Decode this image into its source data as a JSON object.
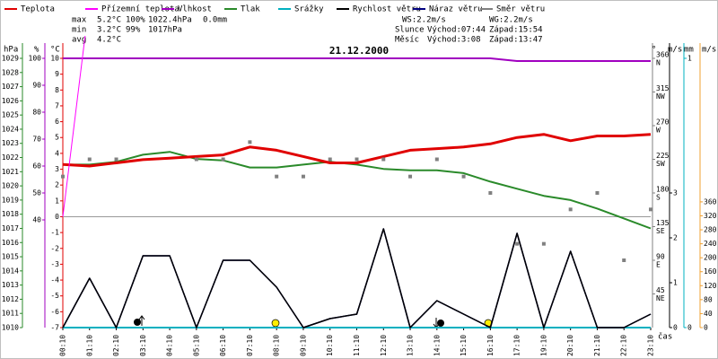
{
  "header": {
    "stats": [
      {
        "label": "max",
        "items": [
          {
            "text": "5.2°C",
            "color": "#e00000"
          },
          {
            "text": "100%",
            "color": "#a000c0"
          },
          {
            "text": "1022.4hPa",
            "color": "#2a8a2a"
          },
          {
            "text": "0.0mm",
            "color": "#00b0c0"
          }
        ]
      },
      {
        "label": "min",
        "items": [
          {
            "text": "3.2°C",
            "color": "#e00000"
          },
          {
            "text": "99%",
            "color": "#a000c0"
          },
          {
            "text": "1017hPa",
            "color": "#2a8a2a"
          }
        ]
      },
      {
        "label": "avg",
        "items": [
          {
            "text": "4.2°C",
            "color": "#e00000"
          }
        ]
      }
    ],
    "wind": [
      "WS:2.2m/s",
      "WG:2.2m/s"
    ],
    "sun": {
      "label": "Slunce",
      "rise": "Východ:07:44",
      "set": "Západ:15:54"
    },
    "moon": {
      "label": "Měsíc",
      "rise": "Východ:3:08",
      "set": "Západ:13:47"
    }
  },
  "chart_data": {
    "type": "line",
    "title": "21.12.2000",
    "x_label": "čas",
    "categories": [
      "00:10",
      "01:10",
      "02:10",
      "03:10",
      "04:10",
      "05:10",
      "06:10",
      "07:10",
      "08:10",
      "09:10",
      "10:10",
      "11:10",
      "12:10",
      "13:10",
      "14:10",
      "15:10",
      "16:10",
      "17:10",
      "19:10",
      "20:10",
      "21:10",
      "22:10",
      "23:10"
    ],
    "axes": {
      "hpa": {
        "label": "hPa",
        "color": "#2a8a2a",
        "side": "left",
        "lim": [
          1010,
          1029
        ],
        "ticks": [
          1010,
          1011,
          1012,
          1013,
          1014,
          1015,
          1016,
          1017,
          1018,
          1019,
          1020,
          1021,
          1022,
          1023,
          1024,
          1025,
          1026,
          1027,
          1028,
          1029
        ]
      },
      "pct": {
        "label": "%",
        "color": "#a000c0",
        "side": "left",
        "lim": [
          0,
          100
        ],
        "ticks": [
          40,
          50,
          60,
          70,
          80,
          90,
          100
        ]
      },
      "c": {
        "label": "°C",
        "color": "#e00000",
        "side": "left",
        "lim": [
          -7,
          10
        ],
        "ticks": [
          -7,
          -6,
          -5,
          -4,
          -3,
          -2,
          -1,
          0,
          1,
          2,
          3,
          4,
          5,
          6,
          7,
          8,
          9,
          10
        ]
      },
      "deg": {
        "label": "°",
        "color": "#808080",
        "side": "right",
        "lim": [
          0,
          360
        ],
        "ticks": [
          45,
          90,
          135,
          180,
          225,
          270,
          315,
          360
        ],
        "tick_names": [
          "NE",
          "E",
          "SE",
          "S",
          "SW",
          "W",
          "NW",
          "N"
        ]
      },
      "ms": {
        "label": "m/s",
        "color": "#000000",
        "side": "right",
        "lim": [
          0,
          6
        ],
        "ticks": [
          0,
          1,
          2,
          3
        ]
      },
      "mm": {
        "label": "mm",
        "color": "#00b0c0",
        "side": "right",
        "lim": [
          0,
          1
        ],
        "ticks": [
          0,
          1
        ]
      },
      "ms2": {
        "label": "m/s",
        "color": "#f0a030",
        "side": "right",
        "lim": [
          0,
          771
        ],
        "ticks": [
          0,
          40,
          80,
          120,
          160,
          200,
          240,
          280,
          320,
          360
        ]
      }
    },
    "series": [
      {
        "name": "Teplota",
        "color": "#e00000",
        "axis": "c",
        "values": [
          3.3,
          3.2,
          3.4,
          3.6,
          3.7,
          3.8,
          3.9,
          4.4,
          4.2,
          3.8,
          3.4,
          3.4,
          3.8,
          4.2,
          4.3,
          4.4,
          4.6,
          5.0,
          5.2,
          4.8,
          5.1,
          5.1,
          5.2
        ]
      },
      {
        "name": "Přízemní teplota",
        "color": "#ff00ff",
        "axis": "c",
        "values": [
          0,
          13.7,
          null,
          null,
          null,
          null,
          null,
          null,
          null,
          null,
          null,
          null,
          null,
          null,
          null,
          null,
          null,
          null,
          null,
          null,
          null,
          null,
          null
        ]
      },
      {
        "name": "Vlhkost",
        "color": "#a000c0",
        "axis": "pct",
        "values": [
          100,
          100,
          100,
          100,
          100,
          100,
          100,
          100,
          100,
          100,
          100,
          100,
          100,
          100,
          100,
          100,
          100,
          99,
          99,
          99,
          99,
          99,
          99
        ]
      },
      {
        "name": "Tlak",
        "color": "#2a8a2a",
        "axis": "hpa",
        "values": [
          1021.5,
          1021.5,
          1021.7,
          1022.2,
          1022.4,
          1021.9,
          1021.8,
          1021.3,
          1021.3,
          1021.5,
          1021.7,
          1021.5,
          1021.2,
          1021.1,
          1021.1,
          1020.9,
          1020.3,
          1019.8,
          1019.3,
          1019.0,
          1018.4,
          1017.7,
          1017.0
        ]
      },
      {
        "name": "Srážky",
        "color": "#00b0c0",
        "axis": "mm",
        "values": [
          0,
          0,
          0,
          0,
          0,
          0,
          0,
          0,
          0,
          0,
          0,
          0,
          0,
          0,
          0,
          0,
          0,
          0,
          0,
          0,
          0,
          0,
          0
        ]
      },
      {
        "name": "Rychlost větru",
        "color": "#000000",
        "axis": "ms",
        "values": [
          0,
          1.1,
          0,
          1.6,
          1.6,
          0,
          1.5,
          1.5,
          0.9,
          0,
          0.2,
          0.3,
          2.2,
          0,
          0.6,
          0.3,
          0,
          2.1,
          0,
          1.7,
          0,
          0,
          0.3
        ]
      },
      {
        "name": "Náraz větru",
        "color": "#000080",
        "axis": "ms",
        "values": [
          0,
          1.1,
          0,
          1.6,
          1.6,
          0,
          1.5,
          1.5,
          0.9,
          0,
          0.2,
          0.3,
          2.2,
          0,
          0.6,
          0.3,
          0,
          2.1,
          0,
          1.7,
          0,
          0,
          0.3
        ]
      },
      {
        "name": "Směr větru",
        "color": "#808080",
        "axis": "deg",
        "marker": true,
        "values": [
          202,
          225,
          225,
          null,
          null,
          225,
          225,
          248,
          202,
          202,
          225,
          225,
          225,
          202,
          225,
          202,
          180,
          112,
          112,
          158,
          180,
          90,
          158
        ]
      }
    ]
  }
}
